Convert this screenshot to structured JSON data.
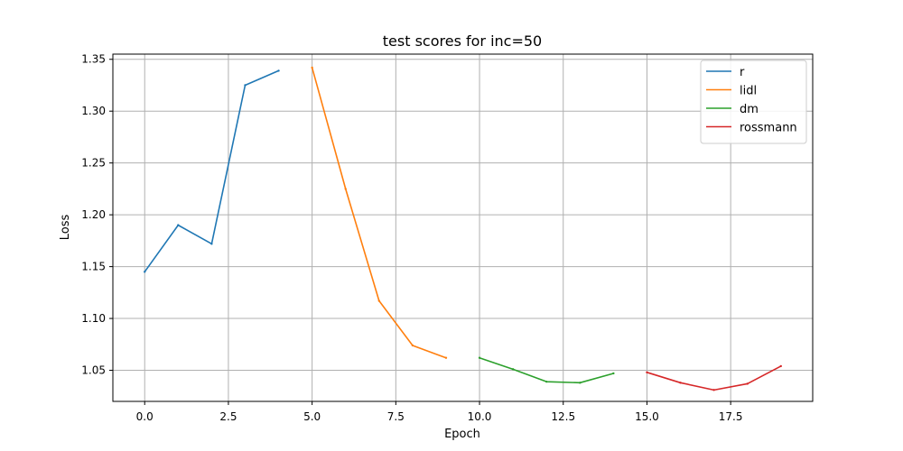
{
  "chart_data": {
    "type": "line",
    "title": "test scores for inc=50",
    "xlabel": "Epoch",
    "ylabel": "Loss",
    "xlim": [
      -0.95,
      19.95
    ],
    "ylim": [
      1.02,
      1.355
    ],
    "xticks": [
      0,
      2.5,
      5,
      7.5,
      10,
      12.5,
      15,
      17.5
    ],
    "xtick_labels": [
      "0.0",
      "2.5",
      "5.0",
      "7.5",
      "10.0",
      "12.5",
      "15.0",
      "17.5"
    ],
    "yticks": [
      1.05,
      1.1,
      1.15,
      1.2,
      1.25,
      1.3,
      1.35
    ],
    "ytick_labels": [
      "1.05",
      "1.10",
      "1.15",
      "1.20",
      "1.25",
      "1.30",
      "1.35"
    ],
    "grid": true,
    "legend_position": "top-right",
    "series": [
      {
        "name": "r",
        "color": "#1f77b4",
        "x": [
          0,
          1,
          2,
          3,
          4
        ],
        "y": [
          1.145,
          1.19,
          1.172,
          1.325,
          1.339
        ]
      },
      {
        "name": "lidl",
        "color": "#ff7f0e",
        "x": [
          5,
          6,
          7,
          8,
          9
        ],
        "y": [
          1.342,
          1.225,
          1.117,
          1.074,
          1.062
        ]
      },
      {
        "name": "dm",
        "color": "#2ca02c",
        "x": [
          10,
          11,
          12,
          13,
          14
        ],
        "y": [
          1.062,
          1.051,
          1.039,
          1.038,
          1.047
        ]
      },
      {
        "name": "rossmann",
        "color": "#d62728",
        "x": [
          15,
          16,
          17,
          18,
          19
        ],
        "y": [
          1.048,
          1.038,
          1.031,
          1.037,
          1.054
        ]
      }
    ]
  }
}
